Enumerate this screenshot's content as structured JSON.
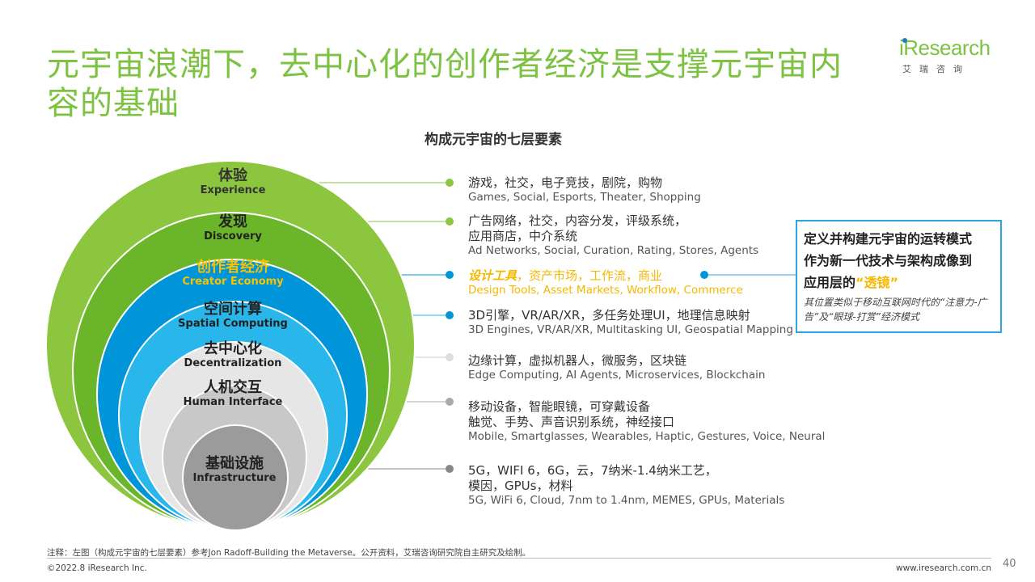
{
  "title": "元宇宙浪潮下，去中心化的创作者经济是支撑元宇宙内容的基础",
  "logo": {
    "text": "iResearch",
    "sub": "艾瑞咨询"
  },
  "diagram_title": "构成元宇宙的七层要素",
  "layers": [
    {
      "zh": "体验",
      "en": "Experience",
      "color": "#8cc63f",
      "desc_zh": "游戏，社交，电子竞技，剧院，购物",
      "desc_en": "Games, Social, Esports, Theater, Shopping"
    },
    {
      "zh": "发现",
      "en": "Discovery",
      "color": "#6bb52b",
      "desc_zh": "广告网络，社交，内容分发，评级系统，",
      "desc_zh2": "应用商店，中介系统",
      "desc_en": "Ad Networks, Social, Curation, Rating, Stores, Agents"
    },
    {
      "zh": "创作者经济",
      "en": "Creator Economy",
      "color": "#0095d9",
      "desc_zh_em": "设计工具",
      "desc_zh": "，资产市场，工作流，商业",
      "desc_en": "Design Tools, Asset Markets, Workflow, Commerce"
    },
    {
      "zh": "空间计算",
      "en": "Spatial Computing",
      "color": "#29b6ea",
      "desc_zh": "3D引擎，VR/AR/XR，多任务处理UI，地理信息映射",
      "desc_en": "3D Engines, VR/AR/XR, Multitasking UI, Geospatial Mapping"
    },
    {
      "zh": "去中心化",
      "en": "Decentralization",
      "color": "#e6e6e6",
      "desc_zh": "边缘计算，虚拟机器人，微服务，区块链",
      "desc_en": "Edge Computing, AI Agents, Microservices, Blockchain"
    },
    {
      "zh": "人机交互",
      "en": "Human Interface",
      "color": "#c8c8c8",
      "desc_zh": "移动设备，智能眼镜，可穿戴设备",
      "desc_zh2": "触觉、手势、声音识别系统，神经接口",
      "desc_en": "Mobile, Smartglasses, Wearables, Haptic, Gestures, Voice, Neural"
    },
    {
      "zh": "基础设施",
      "en": "Infrastructure",
      "color": "#9b9b9b",
      "desc_zh": "5G，WIFI 6，6G，云，7纳米-1.4纳米工艺，",
      "desc_zh2": "模因，GPUs，材料",
      "desc_en": "5G, WiFi 6, Cloud, 7nm to 1.4nm, MEMES, GPUs, Materials"
    }
  ],
  "callout": {
    "line1": "定义并构建元宇宙的运转模式",
    "line2": "作为新一代技术与架构成像到",
    "line3_pre": "应用层的",
    "line3_quote": "“透镜”",
    "sub": "其位置类似于移动互联网时代的“注意力-广告”及“眼球-打赏”经济模式"
  },
  "footnote": "注释：左图（构成元宇宙的七层要素）参考Jon Radoff-Building the Metaverse。公开资料，艾瑞咨询研究院自主研究及绘制。",
  "copyright": "©2022.8 iResearch Inc.",
  "site": "www.iresearch.com.cn",
  "page_number": "40",
  "colors": {
    "title_green": "#7dc242",
    "creator_yellow": "#f5b800",
    "callout_border": "#29a8df"
  }
}
